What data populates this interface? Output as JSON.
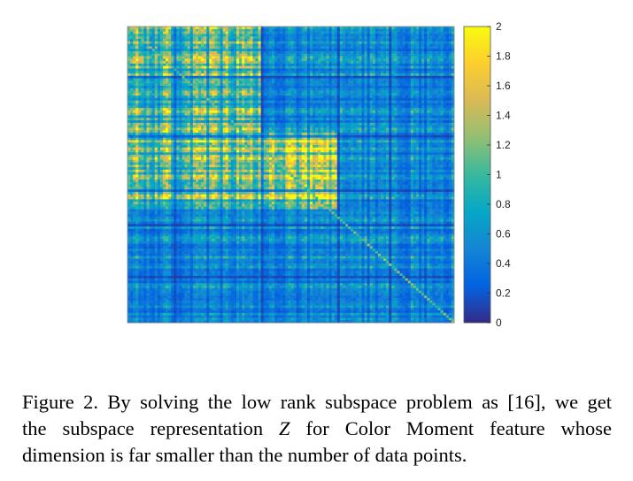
{
  "figure": {
    "caption_lines": [
      {
        "prefix": "Figure 2. By solving the low rank subspace problem as [16], we get"
      },
      {
        "prefix": "the subspace representation ",
        "math": "Z",
        "suffix": " for Color Moment feature whose"
      },
      {
        "prefix": "dimension is far smaller than the number of data points."
      }
    ]
  },
  "chart_data": {
    "type": "heatmap",
    "title": "",
    "xlabel": "",
    "ylabel": "",
    "axes_ticks": false,
    "colormap": "parula",
    "color_range": [
      0,
      2
    ],
    "colorbar": {
      "position": "right",
      "ticks": [
        0,
        0.2,
        0.4,
        0.6,
        0.8,
        1,
        1.2,
        1.4,
        1.6,
        1.8,
        2
      ],
      "tick_labels": [
        "0",
        "0.2",
        "0.4",
        "0.6",
        "0.8",
        "1",
        "1.2",
        "1.4",
        "1.6",
        "1.8",
        "2"
      ]
    },
    "blocks": [
      {
        "rows": [
          0,
          0.36
        ],
        "cols": [
          0,
          0.41
        ],
        "mean": 1.1
      },
      {
        "rows": [
          0.36,
          0.62
        ],
        "cols": [
          0,
          0.41
        ],
        "mean": 1.2
      },
      {
        "rows": [
          0.36,
          0.62
        ],
        "cols": [
          0.41,
          0.64
        ],
        "mean": 1.5
      },
      {
        "rows": [
          0,
          0.36
        ],
        "cols": [
          0.41,
          0.64
        ],
        "mean": 0.55
      },
      {
        "rows": [
          0.62,
          1
        ],
        "cols": [
          0.64,
          1
        ],
        "mean": 0.6
      },
      {
        "rows": [
          0.62,
          1
        ],
        "cols": [
          0,
          0.64
        ],
        "mean": 0.55
      },
      {
        "rows": [
          0,
          0.62
        ],
        "cols": [
          0.64,
          1
        ],
        "mean": 0.6
      }
    ]
  }
}
